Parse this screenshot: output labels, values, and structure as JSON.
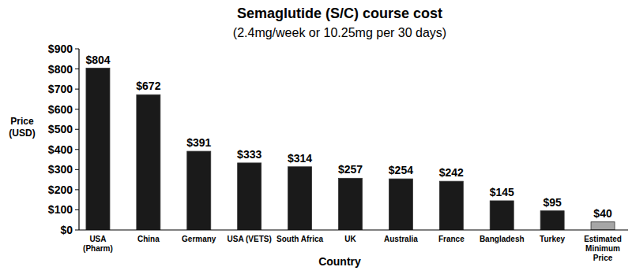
{
  "chart_data": {
    "type": "bar",
    "title": "Semaglutide (S/C) course cost",
    "subtitle": "(2.4mg/week or 10.25mg per 30 days)",
    "x_label": "Country",
    "y_label": "Price\n(USD)",
    "categories": [
      "USA\n(Pharm)",
      "China",
      "Germany",
      "USA (VETS)",
      "South Africa",
      "UK",
      "Australia",
      "France",
      "Bangladesh",
      "Turkey",
      "Estimated\nMinimum\nPrice"
    ],
    "values": [
      804,
      672,
      391,
      333,
      314,
      257,
      254,
      242,
      145,
      95,
      40
    ],
    "value_labels": [
      "$804",
      "$672",
      "$391",
      "$333",
      "$314",
      "$257",
      "$254",
      "$242",
      "$145",
      "$95",
      "$40"
    ],
    "colors": [
      "#1a1a1a",
      "#1a1a1a",
      "#1a1a1a",
      "#1a1a1a",
      "#1a1a1a",
      "#1a1a1a",
      "#1a1a1a",
      "#1a1a1a",
      "#1a1a1a",
      "#1a1a1a",
      "#a6a6a6"
    ],
    "ylim": [
      0,
      900
    ],
    "yticks": [
      {
        "value": 0,
        "label": "$0"
      },
      {
        "value": 100,
        "label": "$100"
      },
      {
        "value": 200,
        "label": "$200"
      },
      {
        "value": 300,
        "label": "$300"
      },
      {
        "value": 400,
        "label": "$400"
      },
      {
        "value": 500,
        "label": "$500"
      },
      {
        "value": 600,
        "label": "$600"
      },
      {
        "value": 700,
        "label": "$700"
      },
      {
        "value": 800,
        "label": "$800"
      },
      {
        "value": 900,
        "label": "$900"
      }
    ],
    "grid": false,
    "data_labels": true
  }
}
